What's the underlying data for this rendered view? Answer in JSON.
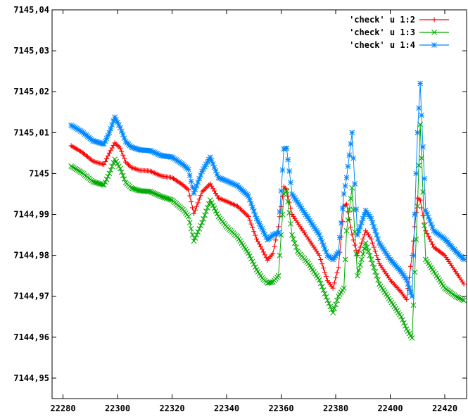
{
  "chart_data": {
    "type": "line",
    "title": "",
    "xlabel": "",
    "ylabel": "",
    "xlim": [
      22276,
      22428
    ],
    "ylim": [
      7144.945,
      7145.04
    ],
    "grid": false,
    "legend_position": "top-right",
    "x_ticks": [
      "22280",
      "22300",
      "22320",
      "22340",
      "22360",
      "22380",
      "22400",
      "22420"
    ],
    "x_tick_values": [
      22280,
      22300,
      22320,
      22340,
      22360,
      22380,
      22400,
      22420
    ],
    "y_ticks": [
      "7144,95",
      "7144,96",
      "7144,97",
      "7144,98",
      "7144,99",
      "7145",
      "7145,01",
      "7145,02",
      "7145,03",
      "7145,04"
    ],
    "y_tick_values": [
      7144.95,
      7144.96,
      7144.97,
      7144.98,
      7144.99,
      7145.0,
      7145.01,
      7145.02,
      7145.03,
      7145.04
    ],
    "series": [
      {
        "name": "'check' u 1:2",
        "color": "#ff0000",
        "marker": "plus",
        "points": [
          [
            22283,
            7145.0068
          ],
          [
            22287,
            7145.0052
          ],
          [
            22291,
            7145.003
          ],
          [
            22295,
            7145.0022
          ],
          [
            22297,
            7145.005
          ],
          [
            22299,
            7145.0075
          ],
          [
            22301,
            7145.0062
          ],
          [
            22303,
            7145.0028
          ],
          [
            22305,
            7145.0015
          ],
          [
            22308,
            7145.0008
          ],
          [
            22312,
            7145.0006
          ],
          [
            22316,
            7144.9994
          ],
          [
            22320,
            7144.999
          ],
          [
            22324,
            7144.9972
          ],
          [
            22326,
            7144.996
          ],
          [
            22328,
            7144.9902
          ],
          [
            22331,
            7144.9955
          ],
          [
            22334,
            7144.9975
          ],
          [
            22337,
            7144.994
          ],
          [
            22340,
            7144.9932
          ],
          [
            22344,
            7144.992
          ],
          [
            22348,
            7144.9895
          ],
          [
            22351,
            7144.984
          ],
          [
            22353,
            7144.9815
          ],
          [
            22355,
            7144.9788
          ],
          [
            22357,
            7144.9805
          ],
          [
            22359,
            7144.987
          ],
          [
            22361,
            7144.9968
          ],
          [
            22362,
            7144.996
          ],
          [
            22364,
            7144.99
          ],
          [
            22366,
            7144.988
          ],
          [
            22370,
            7144.984
          ],
          [
            22374,
            7144.98
          ],
          [
            22377,
            7144.9738
          ],
          [
            22379,
            7144.972
          ],
          [
            22381,
            7144.977
          ],
          [
            22383,
            7144.992
          ],
          [
            22384,
            7144.9925
          ],
          [
            22386,
            7144.985
          ],
          [
            22388,
            7144.98
          ],
          [
            22391,
            7144.986
          ],
          [
            22393,
            7144.984
          ],
          [
            22396,
            7144.978
          ],
          [
            22400,
            7144.974
          ],
          [
            22404,
            7144.971
          ],
          [
            22406,
            7144.9692
          ],
          [
            22408,
            7144.98
          ],
          [
            22410,
            7144.994
          ],
          [
            22411,
            7144.9935
          ],
          [
            22413,
            7144.986
          ],
          [
            22416,
            7144.982
          ],
          [
            22420,
            7144.98
          ],
          [
            22424,
            7144.976
          ],
          [
            22427,
            7144.973
          ]
        ]
      },
      {
        "name": "'check' u 1:3",
        "color": "#00aa00",
        "marker": "cross",
        "points": [
          [
            22283,
            7145.0018
          ],
          [
            22287,
            7145.0002
          ],
          [
            22291,
            7144.998
          ],
          [
            22295,
            7144.9972
          ],
          [
            22297,
            7145.0
          ],
          [
            22299,
            7145.0035
          ],
          [
            22301,
            7145.0012
          ],
          [
            22303,
            7144.9978
          ],
          [
            22305,
            7144.9965
          ],
          [
            22308,
            7144.9958
          ],
          [
            22312,
            7144.9956
          ],
          [
            22316,
            7144.9944
          ],
          [
            22320,
            7144.9935
          ],
          [
            22324,
            7144.9912
          ],
          [
            22326,
            7144.9895
          ],
          [
            22328,
            7144.9835
          ],
          [
            22331,
            7144.988
          ],
          [
            22334,
            7144.9935
          ],
          [
            22337,
            7144.9895
          ],
          [
            22340,
            7144.987
          ],
          [
            22344,
            7144.9845
          ],
          [
            22348,
            7144.9805
          ],
          [
            22351,
            7144.9765
          ],
          [
            22353,
            7144.9745
          ],
          [
            22355,
            7144.9732
          ],
          [
            22357,
            7144.9735
          ],
          [
            22359,
            7144.975
          ],
          [
            22361,
            7144.995
          ],
          [
            22362,
            7144.9958
          ],
          [
            22364,
            7144.985
          ],
          [
            22366,
            7144.981
          ],
          [
            22370,
            7144.978
          ],
          [
            22374,
            7144.974
          ],
          [
            22377,
            7144.969
          ],
          [
            22379,
            7144.966
          ],
          [
            22381,
            7144.97
          ],
          [
            22383,
            7144.972
          ],
          [
            22384,
            7144.986
          ],
          [
            22386,
            7144.9965
          ],
          [
            22388,
            7144.975
          ],
          [
            22391,
            7144.983
          ],
          [
            22393,
            7144.979
          ],
          [
            22396,
            7144.973
          ],
          [
            22400,
            7144.969
          ],
          [
            22404,
            7144.965
          ],
          [
            22406,
            7144.962
          ],
          [
            22408,
            7144.9598
          ],
          [
            22410,
            7144.992
          ],
          [
            22411,
            7145.012
          ],
          [
            22413,
            7144.979
          ],
          [
            22416,
            7144.976
          ],
          [
            22420,
            7144.972
          ],
          [
            22424,
            7144.97
          ],
          [
            22427,
            7144.969
          ]
        ]
      },
      {
        "name": "'check' u 1:4",
        "color": "#0088ff",
        "marker": "star",
        "points": [
          [
            22283,
            7145.0118
          ],
          [
            22287,
            7145.0102
          ],
          [
            22291,
            7145.008
          ],
          [
            22295,
            7145.0072
          ],
          [
            22297,
            7145.01
          ],
          [
            22299,
            7145.0138
          ],
          [
            22301,
            7145.0112
          ],
          [
            22303,
            7145.0078
          ],
          [
            22305,
            7145.0065
          ],
          [
            22308,
            7145.0058
          ],
          [
            22312,
            7145.0056
          ],
          [
            22316,
            7145.0044
          ],
          [
            22320,
            7145.004
          ],
          [
            22324,
            7145.0022
          ],
          [
            22326,
            7145.001
          ],
          [
            22328,
            7144.9952
          ],
          [
            22331,
            7145.0005
          ],
          [
            22334,
            7145.004
          ],
          [
            22337,
            7144.999
          ],
          [
            22340,
            7144.9982
          ],
          [
            22344,
            7144.997
          ],
          [
            22348,
            7144.9945
          ],
          [
            22351,
            7144.989
          ],
          [
            22353,
            7144.9865
          ],
          [
            22355,
            7144.9838
          ],
          [
            22357,
            7144.985
          ],
          [
            22359,
            7144.9855
          ],
          [
            22361,
            7145.006
          ],
          [
            22362,
            7145.0062
          ],
          [
            22364,
            7144.995
          ],
          [
            22366,
            7144.993
          ],
          [
            22370,
            7144.989
          ],
          [
            22374,
            7144.985
          ],
          [
            22377,
            7144.98
          ],
          [
            22379,
            7144.979
          ],
          [
            22381,
            7144.9808
          ],
          [
            22383,
            7144.995
          ],
          [
            22384,
            7144.999
          ],
          [
            22386,
            7145.01
          ],
          [
            22388,
            7144.985
          ],
          [
            22391,
            7144.991
          ],
          [
            22393,
            7144.989
          ],
          [
            22396,
            7144.983
          ],
          [
            22400,
            7144.979
          ],
          [
            22404,
            7144.976
          ],
          [
            22406,
            7144.974
          ],
          [
            22408,
            7144.97
          ],
          [
            22410,
            7145.01
          ],
          [
            22411,
            7145.022
          ],
          [
            22413,
            7144.991
          ],
          [
            22416,
            7144.986
          ],
          [
            22420,
            7144.984
          ],
          [
            22424,
            7144.981
          ],
          [
            22427,
            7144.979
          ]
        ]
      }
    ]
  }
}
